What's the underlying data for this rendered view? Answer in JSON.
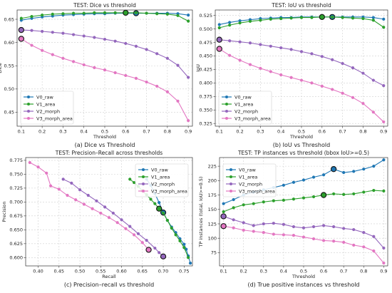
{
  "chart_data": [
    {
      "type": "line",
      "title": "TEST: Dice vs threshold",
      "caption": "(a) Dice vs Threshold",
      "xlabel": "Threshold",
      "ylabel": "Dice",
      "xlim": [
        0.08,
        0.92
      ],
      "ylim": [
        0.42,
        0.67
      ],
      "xticks": [
        0.1,
        0.2,
        0.3,
        0.4,
        0.5,
        0.6,
        0.7,
        0.8,
        0.9
      ],
      "yticks": [
        0.45,
        0.5,
        0.55,
        0.6,
        0.65
      ],
      "grid": true,
      "legend": "bottom-left",
      "series": [
        {
          "name": "V0_raw",
          "color": "#1f77b4",
          "x": [
            0.1,
            0.15,
            0.2,
            0.25,
            0.3,
            0.35,
            0.4,
            0.45,
            0.5,
            0.55,
            0.6,
            0.65,
            0.7,
            0.75,
            0.8,
            0.85,
            0.9
          ],
          "y": [
            0.648,
            0.652,
            0.655,
            0.657,
            0.659,
            0.66,
            0.661,
            0.662,
            0.662,
            0.663,
            0.663,
            0.663,
            0.663,
            0.663,
            0.663,
            0.662,
            0.659
          ],
          "highlight_x": [
            0.65
          ]
        },
        {
          "name": "V1_area",
          "color": "#2ca02c",
          "x": [
            0.1,
            0.15,
            0.2,
            0.25,
            0.3,
            0.35,
            0.4,
            0.45,
            0.5,
            0.55,
            0.6,
            0.65,
            0.7,
            0.75,
            0.8,
            0.85,
            0.9
          ],
          "y": [
            0.652,
            0.656,
            0.659,
            0.661,
            0.662,
            0.663,
            0.663,
            0.664,
            0.664,
            0.664,
            0.664,
            0.664,
            0.663,
            0.662,
            0.661,
            0.658,
            0.646
          ],
          "highlight_x": [
            0.6
          ]
        },
        {
          "name": "V2_morph",
          "color": "#9467bd",
          "x": [
            0.1,
            0.15,
            0.2,
            0.25,
            0.3,
            0.35,
            0.4,
            0.45,
            0.5,
            0.55,
            0.6,
            0.65,
            0.7,
            0.75,
            0.8,
            0.85,
            0.9
          ],
          "y": [
            0.627,
            0.626,
            0.624,
            0.622,
            0.62,
            0.617,
            0.614,
            0.611,
            0.607,
            0.603,
            0.598,
            0.592,
            0.585,
            0.576,
            0.566,
            0.551,
            0.525
          ],
          "highlight_x": [
            0.1
          ]
        },
        {
          "name": "V3_morph_area",
          "color": "#e377c2",
          "x": [
            0.1,
            0.15,
            0.2,
            0.25,
            0.3,
            0.35,
            0.4,
            0.45,
            0.5,
            0.55,
            0.6,
            0.65,
            0.7,
            0.75,
            0.8,
            0.85,
            0.9
          ],
          "y": [
            0.608,
            0.594,
            0.583,
            0.574,
            0.566,
            0.559,
            0.552,
            0.546,
            0.541,
            0.535,
            0.529,
            0.523,
            0.515,
            0.506,
            0.494,
            0.474,
            0.432
          ],
          "highlight_x": [
            0.1
          ]
        }
      ]
    },
    {
      "type": "line",
      "title": "TEST: IoU vs threshold",
      "caption": "(b) IoU vs Threshold",
      "xlabel": "Threshold",
      "ylabel": "IoU",
      "xlim": [
        0.08,
        0.92
      ],
      "ylim": [
        0.32,
        0.535
      ],
      "xticks": [
        0.1,
        0.2,
        0.3,
        0.4,
        0.5,
        0.6,
        0.7,
        0.8,
        0.9
      ],
      "yticks": [
        0.325,
        0.35,
        0.375,
        0.4,
        0.425,
        0.45,
        0.475,
        0.5,
        0.525
      ],
      "grid": true,
      "legend": "bottom-left",
      "series": [
        {
          "name": "V0_raw",
          "color": "#1f77b4",
          "x": [
            0.1,
            0.15,
            0.2,
            0.25,
            0.3,
            0.35,
            0.4,
            0.45,
            0.5,
            0.55,
            0.6,
            0.65,
            0.7,
            0.75,
            0.8,
            0.85,
            0.9
          ],
          "y": [
            0.508,
            0.512,
            0.515,
            0.517,
            0.519,
            0.52,
            0.521,
            0.521,
            0.522,
            0.522,
            0.522,
            0.522,
            0.522,
            0.522,
            0.522,
            0.521,
            0.518
          ],
          "highlight_x": [
            0.65
          ]
        },
        {
          "name": "V1_area",
          "color": "#2ca02c",
          "x": [
            0.1,
            0.15,
            0.2,
            0.25,
            0.3,
            0.35,
            0.4,
            0.45,
            0.5,
            0.55,
            0.6,
            0.65,
            0.7,
            0.75,
            0.8,
            0.85,
            0.9
          ],
          "y": [
            0.502,
            0.507,
            0.511,
            0.514,
            0.516,
            0.518,
            0.519,
            0.52,
            0.521,
            0.521,
            0.522,
            0.522,
            0.521,
            0.52,
            0.519,
            0.516,
            0.503
          ],
          "highlight_x": [
            0.6
          ]
        },
        {
          "name": "V2_morph",
          "color": "#9467bd",
          "x": [
            0.1,
            0.15,
            0.2,
            0.25,
            0.3,
            0.35,
            0.4,
            0.45,
            0.5,
            0.55,
            0.6,
            0.65,
            0.7,
            0.75,
            0.8,
            0.85,
            0.9
          ],
          "y": [
            0.48,
            0.478,
            0.476,
            0.474,
            0.471,
            0.468,
            0.465,
            0.462,
            0.458,
            0.454,
            0.449,
            0.443,
            0.436,
            0.428,
            0.418,
            0.405,
            0.395
          ],
          "highlight_x": [
            0.1
          ]
        },
        {
          "name": "V3_morph_area",
          "color": "#e377c2",
          "x": [
            0.1,
            0.15,
            0.2,
            0.25,
            0.3,
            0.35,
            0.4,
            0.45,
            0.5,
            0.55,
            0.6,
            0.65,
            0.7,
            0.75,
            0.8,
            0.85,
            0.9
          ],
          "y": [
            0.463,
            0.451,
            0.442,
            0.434,
            0.427,
            0.421,
            0.415,
            0.41,
            0.405,
            0.4,
            0.394,
            0.388,
            0.381,
            0.373,
            0.362,
            0.346,
            0.328
          ],
          "highlight_x": [
            0.1
          ]
        }
      ]
    },
    {
      "type": "line",
      "title": "TEST: Precision–Recall across thresholds",
      "caption": "(c) Precision–recall vs threshold",
      "xlabel": "Recall",
      "ylabel": "Precision",
      "xlim": [
        0.37,
        0.77
      ],
      "ylim": [
        0.585,
        0.78
      ],
      "xticks": [
        0.4,
        0.45,
        0.5,
        0.55,
        0.6,
        0.65,
        0.7,
        0.75
      ],
      "yticks": [
        0.6,
        0.625,
        0.65,
        0.675,
        0.7,
        0.725,
        0.75,
        0.775
      ],
      "grid": true,
      "legend": "top-right",
      "series": [
        {
          "name": "V0_raw",
          "color": "#1f77b4",
          "x": [
            0.66,
            0.67,
            0.68,
            0.69,
            0.7,
            0.71,
            0.72,
            0.73,
            0.74,
            0.75,
            0.755,
            0.76,
            0.765
          ],
          "y": [
            0.741,
            0.73,
            0.715,
            0.699,
            0.681,
            0.667,
            0.655,
            0.645,
            0.634,
            0.624,
            0.615,
            0.603,
            0.59
          ],
          "highlight_x": [
            0.7
          ]
        },
        {
          "name": "V1_area",
          "color": "#2ca02c",
          "x": [
            0.62,
            0.63,
            0.64,
            0.65,
            0.66,
            0.67,
            0.68,
            0.69,
            0.7,
            0.71,
            0.72,
            0.73,
            0.74,
            0.75,
            0.76
          ],
          "y": [
            0.741,
            0.735,
            0.728,
            0.72,
            0.713,
            0.705,
            0.697,
            0.688,
            0.68,
            0.667,
            0.653,
            0.641,
            0.63,
            0.618,
            0.6
          ],
          "highlight_x": [
            0.69
          ]
        },
        {
          "name": "V2_morph",
          "color": "#9467bd",
          "x": [
            0.46,
            0.48,
            0.5,
            0.52,
            0.54,
            0.56,
            0.58,
            0.6,
            0.62,
            0.64,
            0.66,
            0.68,
            0.69,
            0.7
          ],
          "y": [
            0.741,
            0.734,
            0.722,
            0.712,
            0.702,
            0.691,
            0.68,
            0.668,
            0.656,
            0.643,
            0.631,
            0.617,
            0.609,
            0.602
          ],
          "highlight_x": [
            0.7
          ]
        },
        {
          "name": "V3_morph_area",
          "color": "#e377c2",
          "x": [
            0.38,
            0.4,
            0.42,
            0.43,
            0.45,
            0.47,
            0.49,
            0.51,
            0.53,
            0.55,
            0.57,
            0.59,
            0.61,
            0.63,
            0.65,
            0.665
          ],
          "y": [
            0.771,
            0.763,
            0.752,
            0.729,
            0.723,
            0.712,
            0.704,
            0.696,
            0.688,
            0.68,
            0.672,
            0.663,
            0.652,
            0.641,
            0.627,
            0.614
          ],
          "highlight_x": [
            0.665
          ]
        }
      ]
    },
    {
      "type": "line",
      "title": "TEST: TP instances vs threshold (bbox IoU>=0.5)",
      "caption": "(d) True positive instances vs threshold",
      "xlabel": "Threshold",
      "ylabel": "TP instances (total, IoU>=0.5)",
      "xlim": [
        0.08,
        0.92
      ],
      "ylim": [
        52,
        240
      ],
      "xticks": [
        0.1,
        0.2,
        0.3,
        0.4,
        0.5,
        0.6,
        0.7,
        0.8,
        0.9
      ],
      "yticks": [
        75,
        100,
        125,
        150,
        175,
        200,
        225
      ],
      "grid": true,
      "legend": "top-left",
      "series": [
        {
          "name": "V0_raw",
          "color": "#1f77b4",
          "x": [
            0.1,
            0.15,
            0.2,
            0.25,
            0.3,
            0.35,
            0.4,
            0.45,
            0.5,
            0.55,
            0.6,
            0.65,
            0.7,
            0.75,
            0.8,
            0.85,
            0.9
          ],
          "y": [
            160,
            167,
            175,
            180,
            184,
            188,
            192,
            197,
            201,
            206,
            210,
            220,
            214,
            216,
            220,
            225,
            236
          ],
          "highlight_x": [
            0.65
          ]
        },
        {
          "name": "V1_area",
          "color": "#2ca02c",
          "x": [
            0.1,
            0.15,
            0.2,
            0.25,
            0.3,
            0.35,
            0.4,
            0.45,
            0.5,
            0.55,
            0.6,
            0.65,
            0.7,
            0.75,
            0.8,
            0.85,
            0.9
          ],
          "y": [
            146,
            153,
            158,
            160,
            163,
            165,
            166,
            168,
            170,
            172,
            175,
            177,
            176,
            177,
            180,
            183,
            182
          ],
          "highlight_x": [
            0.6
          ]
        },
        {
          "name": "V2_morph",
          "color": "#9467bd",
          "x": [
            0.1,
            0.15,
            0.2,
            0.25,
            0.3,
            0.35,
            0.4,
            0.45,
            0.5,
            0.55,
            0.6,
            0.65,
            0.7,
            0.75,
            0.8,
            0.85,
            0.9
          ],
          "y": [
            138,
            132,
            127,
            122,
            125,
            126,
            124,
            120,
            118,
            120,
            122,
            120,
            117,
            115,
            110,
            103,
            83
          ],
          "highlight_x": [
            0.1
          ]
        },
        {
          "name": "V3_morph_area",
          "color": "#e377c2",
          "x": [
            0.1,
            0.15,
            0.2,
            0.25,
            0.3,
            0.35,
            0.4,
            0.45,
            0.5,
            0.55,
            0.6,
            0.65,
            0.7,
            0.75,
            0.8,
            0.85,
            0.9
          ],
          "y": [
            121,
            118,
            114,
            112,
            110,
            107,
            106,
            105,
            102,
            99,
            96,
            95,
            93,
            88,
            85,
            78,
            57
          ],
          "highlight_x": [
            0.1
          ]
        }
      ]
    }
  ]
}
